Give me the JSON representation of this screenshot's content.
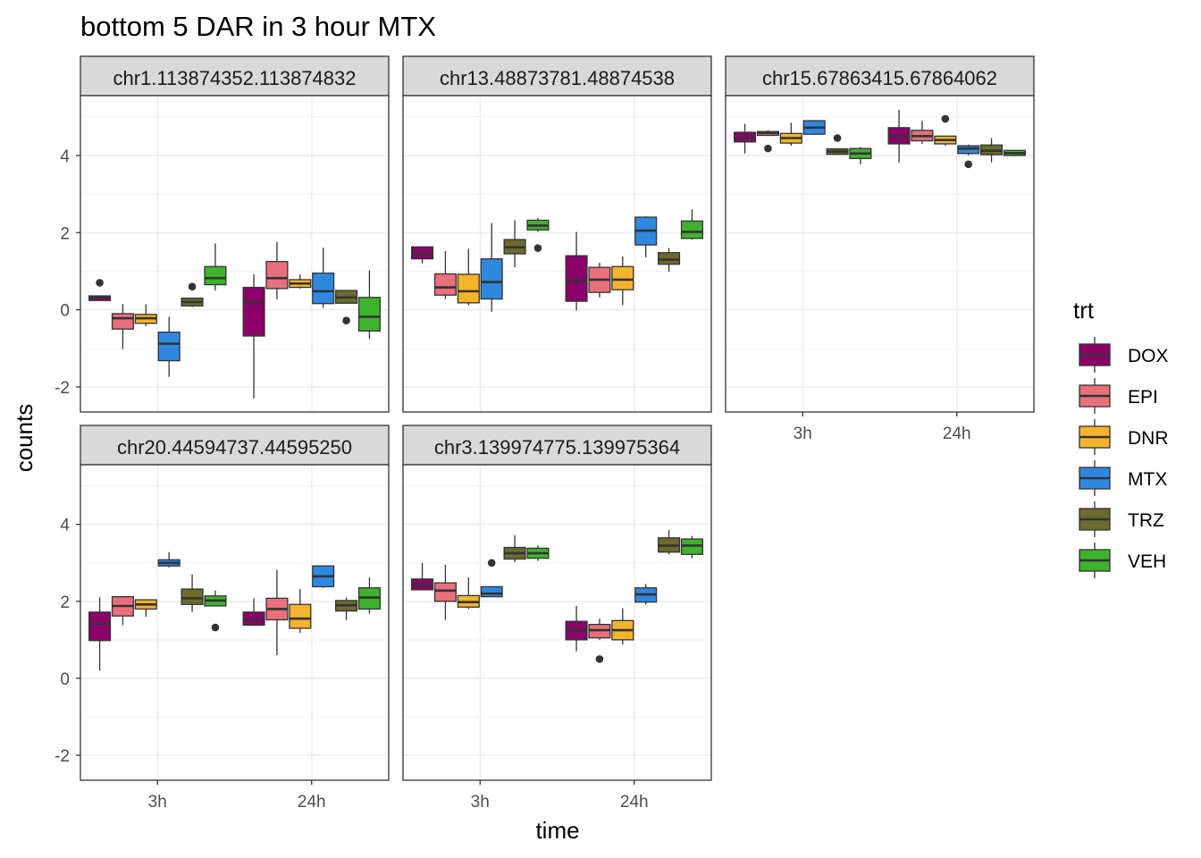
{
  "chart_data": {
    "type": "boxplot",
    "title": "bottom 5 DAR in 3 hour MTX",
    "xlabel": "time",
    "ylabel": "counts",
    "categories": [
      "3h",
      "24h"
    ],
    "ylim": [
      -2.65,
      5.55
    ],
    "yticks": [
      -2,
      0,
      2,
      4
    ],
    "grid": true,
    "legend": {
      "title": "trt",
      "position": "right",
      "items": [
        {
          "name": "DOX",
          "color": "#8B0069"
        },
        {
          "name": "EPI",
          "color": "#E8707C"
        },
        {
          "name": "DNR",
          "color": "#F4B42C"
        },
        {
          "name": "MTX",
          "color": "#2F88E0"
        },
        {
          "name": "TRZ",
          "color": "#6B6B2E"
        },
        {
          "name": "VEH",
          "color": "#3FB22E"
        }
      ]
    },
    "panels": [
      {
        "label": "chr1.113874352.113874832",
        "groups": [
          {
            "time": "3h",
            "trt": "DOX",
            "lower_whisker": 0.24,
            "q1": 0.24,
            "median": 0.32,
            "q3": 0.36,
            "upper_whisker": 0.36,
            "outliers": [
              0.7
            ]
          },
          {
            "time": "3h",
            "trt": "EPI",
            "lower_whisker": -1.02,
            "q1": -0.5,
            "median": -0.22,
            "q3": -0.1,
            "upper_whisker": 0.15,
            "outliers": []
          },
          {
            "time": "3h",
            "trt": "DNR",
            "lower_whisker": -0.42,
            "q1": -0.35,
            "median": -0.22,
            "q3": -0.12,
            "upper_whisker": 0.14,
            "outliers": []
          },
          {
            "time": "3h",
            "trt": "MTX",
            "lower_whisker": -1.74,
            "q1": -1.32,
            "median": -0.88,
            "q3": -0.58,
            "upper_whisker": -0.18,
            "outliers": []
          },
          {
            "time": "3h",
            "trt": "TRZ",
            "lower_whisker": 0.07,
            "q1": 0.1,
            "median": 0.2,
            "q3": 0.3,
            "upper_whisker": 0.3,
            "outliers": [
              0.6
            ]
          },
          {
            "time": "3h",
            "trt": "VEH",
            "lower_whisker": 0.5,
            "q1": 0.65,
            "median": 0.82,
            "q3": 1.12,
            "upper_whisker": 1.72,
            "outliers": []
          },
          {
            "time": "24h",
            "trt": "DOX",
            "lower_whisker": -2.3,
            "q1": -0.68,
            "median": 0.18,
            "q3": 0.58,
            "upper_whisker": 0.92,
            "outliers": []
          },
          {
            "time": "24h",
            "trt": "EPI",
            "lower_whisker": 0.27,
            "q1": 0.55,
            "median": 0.82,
            "q3": 1.25,
            "upper_whisker": 1.76,
            "outliers": []
          },
          {
            "time": "24h",
            "trt": "DNR",
            "lower_whisker": 0.55,
            "q1": 0.58,
            "median": 0.68,
            "q3": 0.78,
            "upper_whisker": 0.92,
            "outliers": []
          },
          {
            "time": "24h",
            "trt": "MTX",
            "lower_whisker": 0.05,
            "q1": 0.16,
            "median": 0.48,
            "q3": 0.95,
            "upper_whisker": 1.61,
            "outliers": []
          },
          {
            "time": "24h",
            "trt": "TRZ",
            "lower_whisker": 0.16,
            "q1": 0.17,
            "median": 0.32,
            "q3": 0.5,
            "upper_whisker": 0.5,
            "outliers": [
              -0.28
            ]
          },
          {
            "time": "24h",
            "trt": "VEH",
            "lower_whisker": -0.76,
            "q1": -0.55,
            "median": -0.18,
            "q3": 0.32,
            "upper_whisker": 1.02,
            "outliers": []
          }
        ]
      },
      {
        "label": "chr13.48873781.48874538",
        "groups": [
          {
            "time": "3h",
            "trt": "DOX",
            "lower_whisker": 1.2,
            "q1": 1.32,
            "median": 1.45,
            "q3": 1.63,
            "upper_whisker": 1.63,
            "outliers": []
          },
          {
            "time": "3h",
            "trt": "EPI",
            "lower_whisker": 0.28,
            "q1": 0.38,
            "median": 0.58,
            "q3": 0.93,
            "upper_whisker": 1.52,
            "outliers": []
          },
          {
            "time": "3h",
            "trt": "DNR",
            "lower_whisker": 0.12,
            "q1": 0.18,
            "median": 0.48,
            "q3": 0.92,
            "upper_whisker": 1.58,
            "outliers": []
          },
          {
            "time": "3h",
            "trt": "MTX",
            "lower_whisker": -0.05,
            "q1": 0.28,
            "median": 0.72,
            "q3": 1.32,
            "upper_whisker": 2.25,
            "outliers": []
          },
          {
            "time": "3h",
            "trt": "TRZ",
            "lower_whisker": 1.1,
            "q1": 1.45,
            "median": 1.62,
            "q3": 1.82,
            "upper_whisker": 2.32,
            "outliers": []
          },
          {
            "time": "3h",
            "trt": "VEH",
            "lower_whisker": 2.02,
            "q1": 2.07,
            "median": 2.18,
            "q3": 2.32,
            "upper_whisker": 2.38,
            "outliers": [
              1.6
            ]
          },
          {
            "time": "24h",
            "trt": "DOX",
            "lower_whisker": -0.02,
            "q1": 0.22,
            "median": 0.75,
            "q3": 1.4,
            "upper_whisker": 2.02,
            "outliers": []
          },
          {
            "time": "24h",
            "trt": "EPI",
            "lower_whisker": 0.32,
            "q1": 0.45,
            "median": 0.78,
            "q3": 1.1,
            "upper_whisker": 1.22,
            "outliers": []
          },
          {
            "time": "24h",
            "trt": "DNR",
            "lower_whisker": 0.12,
            "q1": 0.52,
            "median": 0.78,
            "q3": 1.12,
            "upper_whisker": 1.38,
            "outliers": []
          },
          {
            "time": "24h",
            "trt": "MTX",
            "lower_whisker": 1.36,
            "q1": 1.68,
            "median": 2.05,
            "q3": 2.4,
            "upper_whisker": 2.42,
            "outliers": []
          },
          {
            "time": "24h",
            "trt": "TRZ",
            "lower_whisker": 0.98,
            "q1": 1.18,
            "median": 1.3,
            "q3": 1.48,
            "upper_whisker": 1.6,
            "outliers": []
          },
          {
            "time": "24h",
            "trt": "VEH",
            "lower_whisker": 1.82,
            "q1": 1.85,
            "median": 2.02,
            "q3": 2.3,
            "upper_whisker": 2.6,
            "outliers": []
          }
        ]
      },
      {
        "label": "chr15.67863415.67864062",
        "groups": [
          {
            "time": "3h",
            "trt": "DOX",
            "lower_whisker": 4.05,
            "q1": 4.35,
            "median": 4.45,
            "q3": 4.6,
            "upper_whisker": 4.82,
            "outliers": []
          },
          {
            "time": "3h",
            "trt": "EPI",
            "lower_whisker": 4.5,
            "q1": 4.52,
            "median": 4.58,
            "q3": 4.62,
            "upper_whisker": 4.65,
            "outliers": [
              4.18
            ]
          },
          {
            "time": "3h",
            "trt": "DNR",
            "lower_whisker": 4.25,
            "q1": 4.32,
            "median": 4.45,
            "q3": 4.57,
            "upper_whisker": 4.85,
            "outliers": []
          },
          {
            "time": "3h",
            "trt": "MTX",
            "lower_whisker": 4.53,
            "q1": 4.55,
            "median": 4.72,
            "q3": 4.9,
            "upper_whisker": 4.9,
            "outliers": []
          },
          {
            "time": "3h",
            "trt": "TRZ",
            "lower_whisker": 4.02,
            "q1": 4.03,
            "median": 4.1,
            "q3": 4.17,
            "upper_whisker": 4.17,
            "outliers": [
              4.45
            ]
          },
          {
            "time": "3h",
            "trt": "VEH",
            "lower_whisker": 3.77,
            "q1": 3.92,
            "median": 4.05,
            "q3": 4.18,
            "upper_whisker": 4.22,
            "outliers": []
          },
          {
            "time": "24h",
            "trt": "DOX",
            "lower_whisker": 3.82,
            "q1": 4.3,
            "median": 4.5,
            "q3": 4.72,
            "upper_whisker": 5.18,
            "outliers": []
          },
          {
            "time": "24h",
            "trt": "EPI",
            "lower_whisker": 4.3,
            "q1": 4.38,
            "median": 4.5,
            "q3": 4.65,
            "upper_whisker": 4.9,
            "outliers": []
          },
          {
            "time": "24h",
            "trt": "DNR",
            "lower_whisker": 4.25,
            "q1": 4.3,
            "median": 4.4,
            "q3": 4.5,
            "upper_whisker": 4.5,
            "outliers": [
              4.95
            ]
          },
          {
            "time": "24h",
            "trt": "MTX",
            "lower_whisker": 4.0,
            "q1": 4.05,
            "median": 4.18,
            "q3": 4.25,
            "upper_whisker": 4.28,
            "outliers": [
              3.77
            ]
          },
          {
            "time": "24h",
            "trt": "TRZ",
            "lower_whisker": 3.82,
            "q1": 4.02,
            "median": 4.12,
            "q3": 4.27,
            "upper_whisker": 4.45,
            "outliers": []
          },
          {
            "time": "24h",
            "trt": "VEH",
            "lower_whisker": 3.98,
            "q1": 4.0,
            "median": 4.06,
            "q3": 4.13,
            "upper_whisker": 4.13,
            "outliers": []
          }
        ]
      },
      {
        "label": "chr20.44594737.44595250",
        "groups": [
          {
            "time": "3h",
            "trt": "DOX",
            "lower_whisker": 0.2,
            "q1": 0.98,
            "median": 1.42,
            "q3": 1.72,
            "upper_whisker": 2.1,
            "outliers": []
          },
          {
            "time": "3h",
            "trt": "EPI",
            "lower_whisker": 1.38,
            "q1": 1.62,
            "median": 1.88,
            "q3": 2.12,
            "upper_whisker": 2.12,
            "outliers": []
          },
          {
            "time": "3h",
            "trt": "DNR",
            "lower_whisker": 1.6,
            "q1": 1.8,
            "median": 1.92,
            "q3": 2.04,
            "upper_whisker": 2.04,
            "outliers": []
          },
          {
            "time": "3h",
            "trt": "MTX",
            "lower_whisker": 2.88,
            "q1": 2.92,
            "median": 3.0,
            "q3": 3.08,
            "upper_whisker": 3.28,
            "outliers": []
          },
          {
            "time": "3h",
            "trt": "TRZ",
            "lower_whisker": 1.72,
            "q1": 1.92,
            "median": 2.08,
            "q3": 2.32,
            "upper_whisker": 2.7,
            "outliers": []
          },
          {
            "time": "3h",
            "trt": "VEH",
            "lower_whisker": 1.88,
            "q1": 1.88,
            "median": 2.02,
            "q3": 2.14,
            "upper_whisker": 2.28,
            "outliers": [
              1.32
            ]
          },
          {
            "time": "24h",
            "trt": "DOX",
            "lower_whisker": 1.38,
            "q1": 1.38,
            "median": 1.52,
            "q3": 1.72,
            "upper_whisker": 2.08,
            "outliers": []
          },
          {
            "time": "24h",
            "trt": "EPI",
            "lower_whisker": 0.6,
            "q1": 1.52,
            "median": 1.8,
            "q3": 2.08,
            "upper_whisker": 2.82,
            "outliers": []
          },
          {
            "time": "24h",
            "trt": "DNR",
            "lower_whisker": 1.18,
            "q1": 1.3,
            "median": 1.55,
            "q3": 1.92,
            "upper_whisker": 2.32,
            "outliers": []
          },
          {
            "time": "24h",
            "trt": "MTX",
            "lower_whisker": 2.35,
            "q1": 2.38,
            "median": 2.65,
            "q3": 2.92,
            "upper_whisker": 2.92,
            "outliers": []
          },
          {
            "time": "24h",
            "trt": "TRZ",
            "lower_whisker": 1.52,
            "q1": 1.75,
            "median": 1.9,
            "q3": 2.02,
            "upper_whisker": 2.1,
            "outliers": []
          },
          {
            "time": "24h",
            "trt": "VEH",
            "lower_whisker": 1.68,
            "q1": 1.8,
            "median": 2.1,
            "q3": 2.35,
            "upper_whisker": 2.62,
            "outliers": []
          }
        ]
      },
      {
        "label": "chr3.139974775.139975364",
        "groups": [
          {
            "time": "3h",
            "trt": "DOX",
            "lower_whisker": 2.3,
            "q1": 2.3,
            "median": 2.42,
            "q3": 2.58,
            "upper_whisker": 3.0,
            "outliers": []
          },
          {
            "time": "3h",
            "trt": "EPI",
            "lower_whisker": 1.52,
            "q1": 2.0,
            "median": 2.28,
            "q3": 2.48,
            "upper_whisker": 2.95,
            "outliers": []
          },
          {
            "time": "3h",
            "trt": "DNR",
            "lower_whisker": 1.8,
            "q1": 1.85,
            "median": 1.98,
            "q3": 2.15,
            "upper_whisker": 2.62,
            "outliers": []
          },
          {
            "time": "3h",
            "trt": "MTX",
            "lower_whisker": 2.12,
            "q1": 2.12,
            "median": 2.2,
            "q3": 2.38,
            "upper_whisker": 2.38,
            "outliers": [
              3.0
            ]
          },
          {
            "time": "3h",
            "trt": "TRZ",
            "lower_whisker": 3.02,
            "q1": 3.1,
            "median": 3.25,
            "q3": 3.4,
            "upper_whisker": 3.72,
            "outliers": []
          },
          {
            "time": "3h",
            "trt": "VEH",
            "lower_whisker": 3.05,
            "q1": 3.12,
            "median": 3.25,
            "q3": 3.38,
            "upper_whisker": 3.45,
            "outliers": []
          },
          {
            "time": "24h",
            "trt": "DOX",
            "lower_whisker": 0.7,
            "q1": 1.0,
            "median": 1.25,
            "q3": 1.48,
            "upper_whisker": 1.88,
            "outliers": []
          },
          {
            "time": "24h",
            "trt": "EPI",
            "lower_whisker": 1.0,
            "q1": 1.05,
            "median": 1.25,
            "q3": 1.4,
            "upper_whisker": 1.55,
            "outliers": [
              0.5
            ]
          },
          {
            "time": "24h",
            "trt": "DNR",
            "lower_whisker": 0.88,
            "q1": 1.0,
            "median": 1.25,
            "q3": 1.5,
            "upper_whisker": 1.82,
            "outliers": []
          },
          {
            "time": "24h",
            "trt": "MTX",
            "lower_whisker": 1.92,
            "q1": 1.98,
            "median": 2.18,
            "q3": 2.35,
            "upper_whisker": 2.45,
            "outliers": []
          },
          {
            "time": "24h",
            "trt": "TRZ",
            "lower_whisker": 3.22,
            "q1": 3.28,
            "median": 3.45,
            "q3": 3.65,
            "upper_whisker": 3.85,
            "outliers": []
          },
          {
            "time": "24h",
            "trt": "VEH",
            "lower_whisker": 3.12,
            "q1": 3.22,
            "median": 3.45,
            "q3": 3.62,
            "upper_whisker": 3.7,
            "outliers": []
          }
        ]
      }
    ]
  }
}
